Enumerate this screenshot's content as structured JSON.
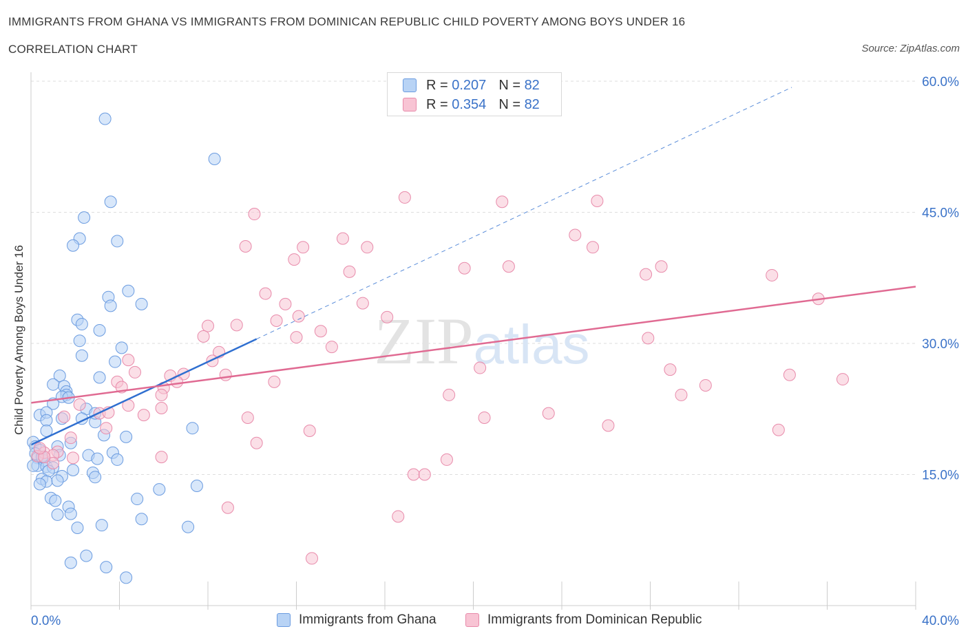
{
  "header": {
    "title": "IMMIGRANTS FROM GHANA VS IMMIGRANTS FROM DOMINICAN REPUBLIC CHILD POVERTY AMONG BOYS UNDER 16",
    "subtitle": "CORRELATION CHART",
    "source": "Source: ZipAtlas.com"
  },
  "watermark": "ZIPatlas",
  "colors": {
    "ghana_fill": "#b8d3f5",
    "ghana_stroke": "#6a9be0",
    "ghana_line": "#2f6fd0",
    "dr_fill": "#f8c4d4",
    "dr_stroke": "#e88aaa",
    "dr_line": "#e06a92",
    "axis_text": "#3a72c8",
    "grid": "#dddddd"
  },
  "legend": {
    "rows": [
      {
        "r_label": "R = ",
        "r_value": "0.207",
        "n_label": "N = ",
        "n_value": "82"
      },
      {
        "r_label": "R = ",
        "r_value": "0.354",
        "n_label": "N = ",
        "n_value": "82"
      }
    ]
  },
  "bottom_legend": {
    "ghana": "Immigrants from Ghana",
    "dr": "Immigrants from Dominican Republic"
  },
  "chart_data": {
    "type": "scatter",
    "title": "IMMIGRANTS FROM GHANA VS IMMIGRANTS FROM DOMINICAN REPUBLIC CHILD POVERTY AMONG BOYS UNDER 16",
    "ylabel": "Child Poverty Among Boys Under 16",
    "xlim": [
      0,
      40
    ],
    "ylim": [
      0,
      60
    ],
    "x_tick_labels": [
      "0.0%",
      "40.0%"
    ],
    "y_ticks": [
      15,
      30,
      45,
      60
    ],
    "y_tick_labels": [
      "15.0%",
      "30.0%",
      "45.0%",
      "60.0%"
    ],
    "grid": true,
    "legend_position": "top-center",
    "series": [
      {
        "name": "Immigrants from Ghana",
        "R": 0.207,
        "N": 82,
        "trend": {
          "x0": 0,
          "y0": 18.4,
          "x1": 10.2,
          "y1": 30.5,
          "dashed_to_x": 34.4,
          "dashed_to_y": 59.3
        },
        "points": [
          [
            3.35,
            55.7
          ],
          [
            8.3,
            51.1
          ],
          [
            3.6,
            46.2
          ],
          [
            2.4,
            44.4
          ],
          [
            2.2,
            42.0
          ],
          [
            1.9,
            41.2
          ],
          [
            3.9,
            41.7
          ],
          [
            4.4,
            36.0
          ],
          [
            3.5,
            35.3
          ],
          [
            3.6,
            34.3
          ],
          [
            5.0,
            34.5
          ],
          [
            2.1,
            32.7
          ],
          [
            2.3,
            32.2
          ],
          [
            3.1,
            31.5
          ],
          [
            2.2,
            30.3
          ],
          [
            4.1,
            29.5
          ],
          [
            2.3,
            28.6
          ],
          [
            3.8,
            27.9
          ],
          [
            1.3,
            26.3
          ],
          [
            3.1,
            26.1
          ],
          [
            1.0,
            25.3
          ],
          [
            1.5,
            25.1
          ],
          [
            1.6,
            24.5
          ],
          [
            1.6,
            24.1
          ],
          [
            1.4,
            23.9
          ],
          [
            1.7,
            23.8
          ],
          [
            1.0,
            23.1
          ],
          [
            2.5,
            22.5
          ],
          [
            0.4,
            21.8
          ],
          [
            0.7,
            22.1
          ],
          [
            0.7,
            21.2
          ],
          [
            1.4,
            21.4
          ],
          [
            2.3,
            21.4
          ],
          [
            2.9,
            21.0
          ],
          [
            0.7,
            20.0
          ],
          [
            3.3,
            19.5
          ],
          [
            4.3,
            19.3
          ],
          [
            1.8,
            18.6
          ],
          [
            0.1,
            18.7
          ],
          [
            0.2,
            18.2
          ],
          [
            0.4,
            17.8
          ],
          [
            1.2,
            18.2
          ],
          [
            0.2,
            17.4
          ],
          [
            1.3,
            17.2
          ],
          [
            2.6,
            17.2
          ],
          [
            3.7,
            17.5
          ],
          [
            0.3,
            16.9
          ],
          [
            0.6,
            16.6
          ],
          [
            3.0,
            16.8
          ],
          [
            3.9,
            16.7
          ],
          [
            0.3,
            16.0
          ],
          [
            0.7,
            15.9
          ],
          [
            1.0,
            15.8
          ],
          [
            0.8,
            15.4
          ],
          [
            1.9,
            15.5
          ],
          [
            2.8,
            15.2
          ],
          [
            1.4,
            14.8
          ],
          [
            0.5,
            14.5
          ],
          [
            0.7,
            14.2
          ],
          [
            1.2,
            14.3
          ],
          [
            2.9,
            14.7
          ],
          [
            0.4,
            13.9
          ],
          [
            5.8,
            13.3
          ],
          [
            7.5,
            13.7
          ],
          [
            0.9,
            12.3
          ],
          [
            1.1,
            12.0
          ],
          [
            4.8,
            12.2
          ],
          [
            1.7,
            11.3
          ],
          [
            1.2,
            10.4
          ],
          [
            1.8,
            10.5
          ],
          [
            5.0,
            9.9
          ],
          [
            2.1,
            8.9
          ],
          [
            3.2,
            9.2
          ],
          [
            7.1,
            9.0
          ],
          [
            2.5,
            5.7
          ],
          [
            1.8,
            4.9
          ],
          [
            3.4,
            4.4
          ],
          [
            4.3,
            3.2
          ],
          [
            7.3,
            20.3
          ],
          [
            0.1,
            16.0
          ],
          [
            0.5,
            17.0
          ],
          [
            2.9,
            22.0
          ]
        ]
      },
      {
        "name": "Immigrants from Dominican Republic",
        "R": 0.354,
        "N": 82,
        "trend": {
          "x0": 0,
          "y0": 23.2,
          "x1": 40,
          "y1": 36.5
        },
        "points": [
          [
            16.9,
            46.7
          ],
          [
            21.3,
            46.2
          ],
          [
            25.6,
            46.3
          ],
          [
            10.1,
            44.8
          ],
          [
            24.6,
            42.4
          ],
          [
            14.1,
            42.0
          ],
          [
            9.7,
            41.1
          ],
          [
            12.3,
            41.0
          ],
          [
            15.2,
            41.0
          ],
          [
            25.4,
            41.0
          ],
          [
            11.9,
            39.6
          ],
          [
            19.6,
            38.6
          ],
          [
            21.6,
            38.8
          ],
          [
            28.5,
            38.8
          ],
          [
            14.4,
            38.2
          ],
          [
            27.8,
            37.9
          ],
          [
            33.5,
            37.8
          ],
          [
            10.6,
            35.7
          ],
          [
            35.6,
            35.1
          ],
          [
            11.5,
            34.5
          ],
          [
            15.0,
            34.6
          ],
          [
            12.1,
            33.1
          ],
          [
            16.1,
            33.0
          ],
          [
            11.1,
            32.6
          ],
          [
            8.0,
            32.0
          ],
          [
            9.3,
            32.1
          ],
          [
            13.1,
            31.4
          ],
          [
            7.8,
            30.8
          ],
          [
            12.0,
            30.7
          ],
          [
            27.9,
            30.6
          ],
          [
            13.6,
            29.6
          ],
          [
            8.5,
            29.0
          ],
          [
            4.4,
            28.1
          ],
          [
            8.2,
            28.0
          ],
          [
            20.3,
            27.2
          ],
          [
            28.9,
            27.0
          ],
          [
            4.7,
            26.7
          ],
          [
            6.3,
            26.3
          ],
          [
            6.9,
            26.5
          ],
          [
            8.8,
            26.4
          ],
          [
            34.3,
            26.4
          ],
          [
            36.7,
            25.9
          ],
          [
            3.9,
            25.6
          ],
          [
            6.6,
            25.6
          ],
          [
            11.0,
            25.6
          ],
          [
            30.5,
            25.2
          ],
          [
            4.1,
            25.0
          ],
          [
            6.0,
            24.9
          ],
          [
            5.9,
            24.1
          ],
          [
            18.9,
            24.1
          ],
          [
            29.4,
            24.1
          ],
          [
            4.4,
            22.9
          ],
          [
            3.1,
            22.0
          ],
          [
            5.9,
            22.6
          ],
          [
            3.5,
            22.1
          ],
          [
            23.4,
            22.0
          ],
          [
            5.1,
            21.8
          ],
          [
            9.8,
            21.5
          ],
          [
            1.5,
            21.6
          ],
          [
            20.5,
            21.5
          ],
          [
            26.1,
            20.6
          ],
          [
            33.8,
            20.1
          ],
          [
            12.6,
            20.0
          ],
          [
            3.4,
            20.3
          ],
          [
            1.8,
            19.2
          ],
          [
            10.2,
            18.6
          ],
          [
            0.6,
            17.5
          ],
          [
            1.2,
            17.6
          ],
          [
            1.0,
            17.2
          ],
          [
            5.9,
            17.0
          ],
          [
            1.9,
            16.9
          ],
          [
            18.8,
            16.7
          ],
          [
            0.3,
            17.1
          ],
          [
            1.0,
            16.3
          ],
          [
            17.3,
            15.0
          ],
          [
            17.8,
            15.0
          ],
          [
            8.9,
            11.2
          ],
          [
            16.6,
            10.2
          ],
          [
            12.7,
            5.4
          ],
          [
            0.6,
            17.0
          ],
          [
            2.2,
            23.0
          ],
          [
            0.4,
            18.0
          ]
        ]
      }
    ]
  }
}
